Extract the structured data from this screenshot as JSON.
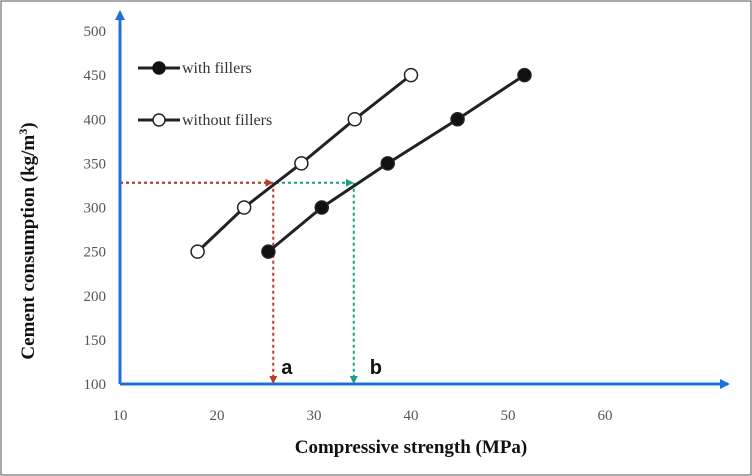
{
  "chart_data": {
    "type": "line",
    "title": "",
    "xlabel": "Compressive strength (MPa)",
    "ylabel_main": "Cement consumption (kg/m",
    "ylabel_sup": "3",
    "ylabel_end": ")",
    "xlim": [
      10,
      60
    ],
    "ylim": [
      100,
      500
    ],
    "xticks": [
      "10",
      "20",
      "30",
      "40",
      "50",
      "60"
    ],
    "yticks": [
      "100",
      "150",
      "200",
      "250",
      "300",
      "350",
      "400",
      "450",
      "500"
    ],
    "grid": false,
    "legend_position": "top-left",
    "series": [
      {
        "name": "with fillers",
        "marker": "filled-circle",
        "color": "#222222",
        "x": [
          25.3,
          30.8,
          37.6,
          44.8,
          51.7
        ],
        "y": [
          250,
          300,
          350,
          400,
          450
        ]
      },
      {
        "name": "without fillers",
        "marker": "open-circle",
        "color": "#222222",
        "x": [
          18.0,
          22.8,
          28.7,
          34.2,
          40.0
        ],
        "y": [
          250,
          300,
          350,
          400,
          450
        ]
      }
    ],
    "annotations": [
      {
        "label": "a",
        "x": 25.8,
        "y": 328,
        "color": "#c0392b"
      },
      {
        "label": "b",
        "x": 34.1,
        "y": 328,
        "color": "#16a085"
      }
    ],
    "axis_color": "#1f6fd8"
  }
}
